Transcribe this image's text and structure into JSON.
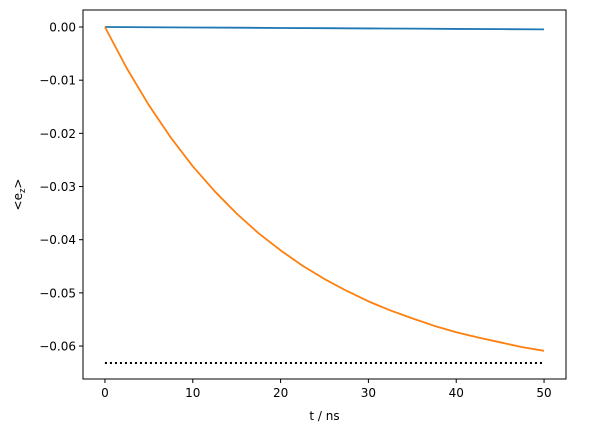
{
  "chart_data": {
    "type": "line",
    "xlabel": "t / ns",
    "ylabel": {
      "base": "<e",
      "sub": "z",
      "end": ">"
    },
    "xlim": [
      -2.5,
      52.5
    ],
    "ylim": [
      -0.0662,
      0.0032
    ],
    "xticks": [
      0,
      10,
      20,
      30,
      40,
      50
    ],
    "xtick_labels": [
      "0",
      "10",
      "20",
      "30",
      "40",
      "50"
    ],
    "yticks": [
      0.0,
      -0.01,
      -0.02,
      -0.03,
      -0.04,
      -0.05,
      -0.06
    ],
    "ytick_labels": [
      "0.00",
      "−0.01",
      "−0.02",
      "−0.03",
      "−0.04",
      "−0.05",
      "−0.06"
    ],
    "grid": false,
    "series": [
      {
        "color": "#1f77b4",
        "style": "solid",
        "x": [
          0,
          5,
          10,
          15,
          20,
          25,
          30,
          35,
          40,
          45,
          50
        ],
        "y": [
          0.0,
          -4e-05,
          -9e-05,
          -0.00013,
          -0.00018,
          -0.00022,
          -0.00027,
          -0.00031,
          -0.00036,
          -0.0004,
          -0.00045
        ]
      },
      {
        "color": "#ff7f0e",
        "style": "solid",
        "x": [
          0,
          2.5,
          5,
          7.5,
          10,
          12.5,
          15,
          17.5,
          20,
          22.5,
          25,
          27.5,
          30,
          32.5,
          35,
          37.5,
          40,
          42.5,
          45,
          47.5,
          50
        ],
        "y": [
          0.0,
          -0.0078,
          -0.0147,
          -0.0208,
          -0.0262,
          -0.0309,
          -0.0351,
          -0.0388,
          -0.042,
          -0.0449,
          -0.0474,
          -0.0496,
          -0.0516,
          -0.0533,
          -0.0548,
          -0.0562,
          -0.0574,
          -0.0584,
          -0.0593,
          -0.0602,
          -0.0609
        ]
      },
      {
        "color": "#000000",
        "style": "dotted",
        "x": [
          0,
          50
        ],
        "y": [
          -0.0632,
          -0.0632
        ]
      }
    ]
  }
}
